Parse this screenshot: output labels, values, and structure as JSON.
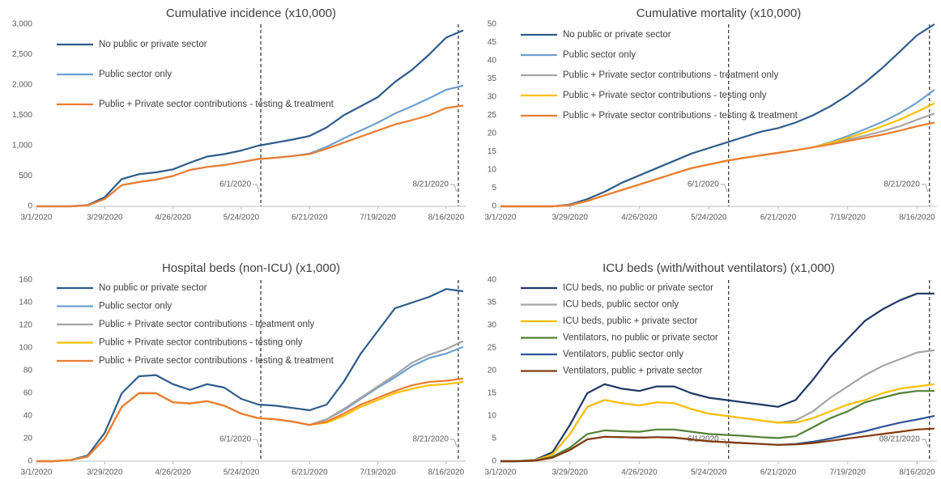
{
  "chart_data": [
    {
      "type": "line",
      "title": "Cumulative incidence (x10,000)",
      "x": [
        "3/1/2020",
        "3/8/2020",
        "3/15/2020",
        "3/22/2020",
        "3/29/2020",
        "4/5/2020",
        "4/12/2020",
        "4/19/2020",
        "4/26/2020",
        "5/3/2020",
        "5/10/2020",
        "5/17/2020",
        "5/24/2020",
        "5/31/2020",
        "6/7/2020",
        "6/14/2020",
        "6/21/2020",
        "6/28/2020",
        "7/5/2020",
        "7/12/2020",
        "7/19/2020",
        "7/26/2020",
        "8/2/2020",
        "8/9/2020",
        "8/16/2020",
        "8/23/2020"
      ],
      "xlim": [
        "3/1/2020",
        "8/24/2020"
      ],
      "xticks": [
        "3/1/2020",
        "3/29/2020",
        "4/26/2020",
        "5/24/2020",
        "6/21/2020",
        "7/19/2020",
        "8/16/2020"
      ],
      "ylim": [
        0,
        3000
      ],
      "yticks": [
        0,
        500,
        {
          "value": 1000,
          "label": "1,000"
        },
        {
          "value": 1500,
          "label": "1,500"
        },
        {
          "value": 2000,
          "label": "2,000"
        },
        {
          "value": 2500,
          "label": "2,500"
        },
        {
          "value": 3000,
          "label": "3,000"
        }
      ],
      "annotations": [
        {
          "x": "6/1/2020",
          "label": "6/1/2020"
        },
        {
          "x": "8/21/2020",
          "label": "8/21/2020"
        }
      ],
      "series": [
        {
          "name": "No public or private sector",
          "color": "#2e5c8a",
          "values": [
            0,
            0,
            0,
            20,
            150,
            450,
            530,
            560,
            610,
            720,
            820,
            860,
            920,
            1000,
            1050,
            1100,
            1160,
            1300,
            1500,
            1650,
            1800,
            2050,
            2250,
            2500,
            2780,
            2900
          ]
        },
        {
          "name": "Public sector only",
          "color": "#6fa0d0",
          "values": [
            0,
            0,
            0,
            15,
            120,
            350,
            400,
            440,
            500,
            600,
            650,
            680,
            730,
            780,
            800,
            830,
            870,
            980,
            1120,
            1250,
            1380,
            1530,
            1650,
            1780,
            1920,
            1990
          ]
        },
        {
          "name": "Public + Private sector contributions -  testing & treatment",
          "color": "#ed7d31",
          "values": [
            0,
            0,
            0,
            15,
            120,
            350,
            400,
            440,
            500,
            600,
            650,
            680,
            730,
            780,
            800,
            830,
            860,
            950,
            1050,
            1150,
            1250,
            1350,
            1420,
            1500,
            1620,
            1660
          ]
        }
      ]
    },
    {
      "type": "line",
      "title": "Cumulative mortality (x10,000)",
      "x": [
        "3/1/2020",
        "3/8/2020",
        "3/15/2020",
        "3/22/2020",
        "3/29/2020",
        "4/5/2020",
        "4/12/2020",
        "4/19/2020",
        "4/26/2020",
        "5/3/2020",
        "5/10/2020",
        "5/17/2020",
        "5/24/2020",
        "5/31/2020",
        "6/7/2020",
        "6/14/2020",
        "6/21/2020",
        "6/28/2020",
        "7/5/2020",
        "7/12/2020",
        "7/19/2020",
        "7/26/2020",
        "8/2/2020",
        "8/9/2020",
        "8/16/2020",
        "8/23/2020"
      ],
      "xlim": [
        "3/1/2020",
        "8/24/2020"
      ],
      "xticks": [
        "3/1/2020",
        "3/29/2020",
        "4/26/2020",
        "5/24/2020",
        "6/21/2020",
        "7/19/2020",
        "8/16/2020"
      ],
      "ylim": [
        0,
        50
      ],
      "yticks": [
        0,
        5,
        10,
        15,
        20,
        25,
        30,
        35,
        40,
        45,
        50
      ],
      "annotations": [
        {
          "x": "6/1/2020",
          "label": "6/1/2020"
        },
        {
          "x": "8/21/2020",
          "label": "8/21/2020"
        }
      ],
      "series": [
        {
          "name": "No public or private sector",
          "color": "#2e5c8a",
          "values": [
            0,
            0,
            0,
            0,
            0.5,
            2,
            4,
            6.5,
            8.5,
            10.5,
            12.5,
            14.5,
            16,
            17.5,
            19,
            20.5,
            21.5,
            23,
            25,
            27.5,
            30.5,
            34,
            38,
            42.5,
            47,
            50
          ]
        },
        {
          "name": "Public sector only",
          "color": "#6fa0d0",
          "values": [
            0,
            0,
            0,
            0,
            0.3,
            1.5,
            3,
            4.5,
            6,
            7.5,
            9,
            10.5,
            11.5,
            12.5,
            13.3,
            14,
            14.7,
            15.4,
            16.2,
            17.6,
            19.3,
            21.2,
            23.2,
            25.6,
            28.5,
            32
          ]
        },
        {
          "name": "Public + Private sector contributions - treatment only",
          "color": "#a5a5a5",
          "values": [
            0,
            0,
            0,
            0,
            0.3,
            1.5,
            3,
            4.5,
            6,
            7.5,
            9,
            10.5,
            11.5,
            12.5,
            13.3,
            14,
            14.7,
            15.4,
            16.2,
            17.2,
            18.3,
            19.4,
            20.6,
            22,
            23.8,
            25.5
          ]
        },
        {
          "name": "Public + Private sector contributions - testing only",
          "color": "#ffc000",
          "values": [
            0,
            0,
            0,
            0,
            0.3,
            1.5,
            3,
            4.5,
            6,
            7.5,
            9,
            10.5,
            11.5,
            12.5,
            13.3,
            14,
            14.7,
            15.4,
            16.2,
            17.4,
            18.8,
            20.3,
            22,
            23.8,
            26,
            28.3
          ]
        },
        {
          "name": "Public + Private sector contributions - testing & treatment",
          "color": "#ed7d31",
          "values": [
            0,
            0,
            0,
            0,
            0.3,
            1.5,
            3,
            4.5,
            6,
            7.5,
            9,
            10.5,
            11.5,
            12.5,
            13.3,
            14,
            14.7,
            15.4,
            16.2,
            17,
            17.9,
            18.8,
            19.7,
            20.8,
            22,
            23
          ]
        }
      ]
    },
    {
      "type": "line",
      "title": "Hospital beds (non-ICU) (x1,000)",
      "x": [
        "3/1/2020",
        "3/8/2020",
        "3/15/2020",
        "3/22/2020",
        "3/29/2020",
        "4/5/2020",
        "4/12/2020",
        "4/19/2020",
        "4/26/2020",
        "5/3/2020",
        "5/10/2020",
        "5/17/2020",
        "5/24/2020",
        "5/31/2020",
        "6/7/2020",
        "6/14/2020",
        "6/21/2020",
        "6/28/2020",
        "7/5/2020",
        "7/12/2020",
        "7/19/2020",
        "7/26/2020",
        "8/2/2020",
        "8/9/2020",
        "8/16/2020",
        "8/23/2020"
      ],
      "xlim": [
        "3/1/2020",
        "8/24/2020"
      ],
      "xticks": [
        "3/1/2020",
        "3/29/2020",
        "4/26/2020",
        "5/24/2020",
        "6/21/2020",
        "7/19/2020",
        "8/16/2020"
      ],
      "ylim": [
        0,
        160
      ],
      "yticks": [
        0,
        20,
        40,
        60,
        80,
        100,
        120,
        140,
        160
      ],
      "annotations": [
        {
          "x": "6/1/2020",
          "label": "6/1/2020"
        },
        {
          "x": "8/21/2020",
          "label": "8/21/2020"
        }
      ],
      "series": [
        {
          "name": "No public or private sector",
          "color": "#2e5c8a",
          "values": [
            0,
            0,
            1,
            5,
            25,
            60,
            75,
            76,
            68,
            63,
            68,
            65,
            55,
            50,
            49,
            47,
            45,
            50,
            70,
            95,
            115,
            135,
            140,
            145,
            152,
            150
          ]
        },
        {
          "name": "Public sector only",
          "color": "#6fa0d0",
          "values": [
            0,
            0,
            1,
            4,
            20,
            48,
            60,
            60,
            52,
            51,
            53,
            49,
            42,
            38,
            37,
            35,
            32,
            37,
            45,
            55,
            65,
            74,
            84,
            91,
            95,
            101
          ]
        },
        {
          "name": "Public + Private sector contributions - treatment only",
          "color": "#a5a5a5",
          "values": [
            0,
            0,
            1,
            4,
            20,
            48,
            60,
            60,
            52,
            51,
            53,
            49,
            42,
            38,
            37,
            35,
            32,
            37,
            46,
            56,
            66,
            76,
            87,
            94,
            99,
            106
          ]
        },
        {
          "name": "Public + Private sector contributions - testing only",
          "color": "#ffc000",
          "values": [
            0,
            0,
            1,
            4,
            20,
            48,
            60,
            60,
            52,
            51,
            53,
            49,
            42,
            38,
            37,
            35,
            32,
            34,
            40,
            48,
            54,
            60,
            64,
            67,
            68,
            70
          ]
        },
        {
          "name": "Public + Private sector contributions - testing & treatment",
          "color": "#ed7d31",
          "values": [
            0,
            0,
            1,
            4,
            20,
            48,
            60,
            60,
            52,
            51,
            53,
            49,
            42,
            38,
            37,
            35,
            32,
            35,
            42,
            50,
            56,
            62,
            67,
            70,
            71,
            73
          ]
        }
      ]
    },
    {
      "type": "line",
      "title": "ICU beds (with/without ventilators) (x1,000)",
      "x": [
        "3/1/2020",
        "3/8/2020",
        "3/15/2020",
        "3/22/2020",
        "3/29/2020",
        "4/5/2020",
        "4/12/2020",
        "4/19/2020",
        "4/26/2020",
        "5/3/2020",
        "5/10/2020",
        "5/17/2020",
        "5/24/2020",
        "5/31/2020",
        "6/7/2020",
        "6/14/2020",
        "6/21/2020",
        "6/28/2020",
        "7/5/2020",
        "7/12/2020",
        "7/19/2020",
        "7/26/2020",
        "8/2/2020",
        "8/9/2020",
        "8/16/2020",
        "8/23/2020"
      ],
      "xlim": [
        "3/1/2020",
        "8/24/2020"
      ],
      "xticks": [
        "3/1/2020",
        "3/29/2020",
        "4/26/2020",
        "5/24/2020",
        "6/21/2020",
        "7/19/2020",
        "8/16/2020"
      ],
      "ylim": [
        0,
        40
      ],
      "yticks": [
        0,
        5,
        10,
        15,
        20,
        25,
        30,
        35,
        40
      ],
      "annotations": [
        {
          "x": "6/1/2020",
          "label": "6/1/2020"
        },
        {
          "x": "8/21/2020",
          "label": "08/21/2020"
        }
      ],
      "series": [
        {
          "name": "ICU beds, no public or private sector",
          "color": "#1f3864",
          "values": [
            0,
            0,
            0.3,
            2,
            8,
            15,
            17,
            16,
            15.5,
            16.5,
            16.5,
            15,
            14,
            13.5,
            13,
            12.5,
            12,
            13.5,
            18,
            23,
            27,
            31,
            33.5,
            35.5,
            37,
            37
          ]
        },
        {
          "name": "ICU beds, public sector only",
          "color": "#a5a5a5",
          "values": [
            0,
            0,
            0.2,
            1.5,
            6,
            12,
            13.5,
            12.8,
            12.3,
            13,
            12.8,
            11.5,
            10.5,
            10,
            9.5,
            9,
            8.5,
            9,
            11,
            14,
            16.5,
            19,
            21,
            22.5,
            24,
            24.5
          ]
        },
        {
          "name": "ICU beds, public + private sector",
          "color": "#ffc000",
          "values": [
            0,
            0,
            0.2,
            1.5,
            6,
            12,
            13.5,
            12.8,
            12.3,
            13,
            12.8,
            11.5,
            10.5,
            10,
            9.5,
            9,
            8.5,
            8.5,
            9.5,
            11,
            12.5,
            13.5,
            15,
            16,
            16.5,
            17
          ]
        },
        {
          "name": "Ventilators, no public or private sector",
          "color": "#548235",
          "values": [
            0,
            0,
            0.1,
            1,
            3,
            6,
            6.8,
            6.6,
            6.5,
            7,
            7,
            6.5,
            6,
            5.8,
            5.6,
            5.3,
            5.1,
            5.5,
            7.5,
            9.5,
            11,
            13,
            14,
            15,
            15.5,
            15.5
          ]
        },
        {
          "name": "Ventilators, public sector only",
          "color": "#2f5597",
          "values": [
            0,
            0,
            0.1,
            0.8,
            2.5,
            4.8,
            5.4,
            5.3,
            5.2,
            5.3,
            5.2,
            4.8,
            4.4,
            4.2,
            4,
            3.8,
            3.6,
            3.8,
            4.3,
            5,
            5.8,
            6.6,
            7.6,
            8.5,
            9.2,
            10
          ]
        },
        {
          "name": "Ventilators, public + private sector",
          "color": "#843c0c",
          "values": [
            0,
            0,
            0.1,
            0.8,
            2.5,
            4.8,
            5.4,
            5.3,
            5.2,
            5.3,
            5.2,
            4.8,
            4.4,
            4.2,
            4,
            3.8,
            3.6,
            3.7,
            4,
            4.5,
            5,
            5.5,
            6,
            6.5,
            7,
            7.2
          ]
        }
      ]
    }
  ]
}
